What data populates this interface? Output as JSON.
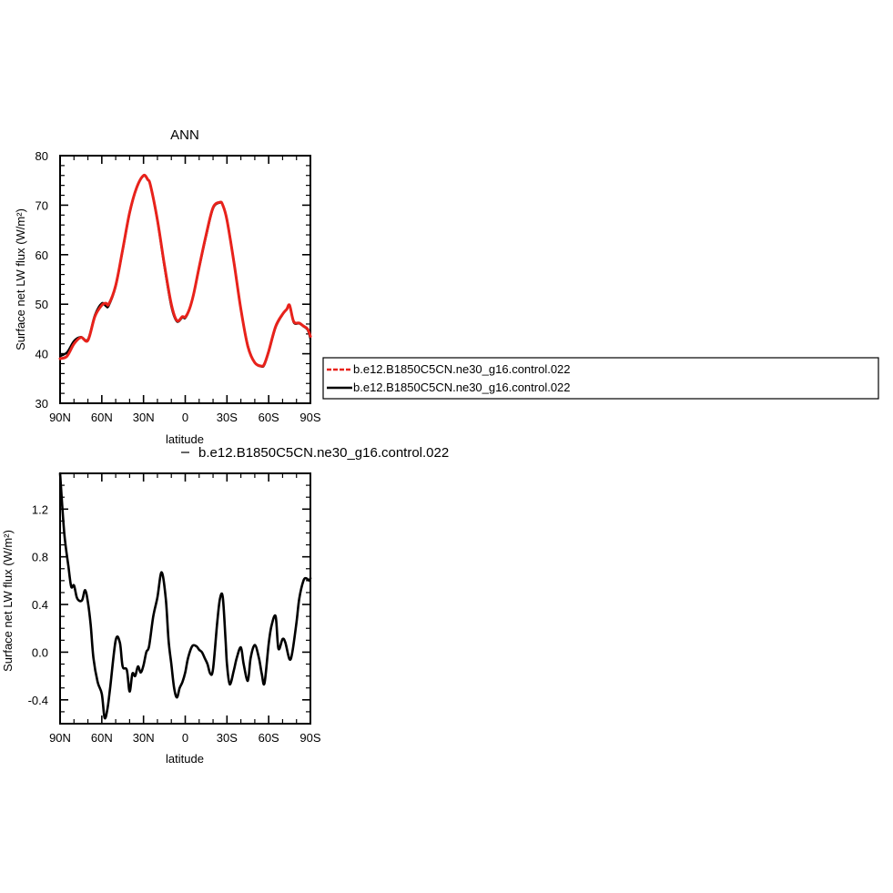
{
  "chart_data": [
    {
      "type": "line",
      "title": "ANN",
      "xlabel": "latitude",
      "ylabel": "Surface net LW flux (W/m²)",
      "x_ticks": [
        "90N",
        "60N",
        "30N",
        "0",
        "30S",
        "60S",
        "90S"
      ],
      "y_ticks": [
        "30",
        "40",
        "50",
        "60",
        "70",
        "80"
      ],
      "xlim": [
        90,
        -90
      ],
      "ylim": [
        30,
        80
      ],
      "grid": false,
      "legend_position": "right",
      "colors": {
        "series_1": "#e8221b",
        "series_2": "#000000"
      },
      "x": [
        90,
        85,
        80,
        75,
        70,
        65,
        60,
        57,
        55,
        50,
        45,
        40,
        35,
        30,
        27,
        25,
        20,
        15,
        10,
        6,
        2,
        0,
        -3,
        -6,
        -10,
        -15,
        -20,
        -25,
        -27,
        -30,
        -35,
        -40,
        -45,
        -50,
        -55,
        -57,
        -60,
        -65,
        -70,
        -73,
        -75,
        -78,
        -82,
        -85,
        -88,
        -90
      ],
      "series": [
        {
          "name": "b.e12.B1850C5CN.ne30_g16.control.022",
          "values": [
            39.0,
            39.5,
            42.0,
            43.3,
            42.7,
            47.5,
            49.8,
            50.2,
            50.0,
            53.8,
            61.0,
            68.5,
            73.5,
            76.0,
            75.2,
            74.0,
            67.0,
            58.0,
            50.0,
            46.7,
            47.5,
            47.4,
            49.0,
            52.0,
            57.5,
            64.0,
            69.5,
            70.6,
            70.0,
            67.0,
            58.5,
            49.0,
            41.5,
            38.2,
            37.5,
            38.0,
            40.5,
            45.5,
            48.0,
            49.0,
            49.8,
            46.5,
            46.2,
            45.6,
            45.0,
            43.5
          ]
        },
        {
          "name": "b.e12.B1850C5CN.ne30_g16.control.022",
          "values": [
            39.5,
            40.3,
            42.6,
            43.4,
            42.9,
            47.8,
            50.2,
            49.6,
            49.7,
            53.6,
            60.8,
            68.3,
            73.4,
            75.9,
            75.1,
            73.9,
            66.8,
            57.6,
            49.5,
            46.5,
            47.3,
            47.2,
            48.9,
            52.0,
            57.3,
            63.7,
            69.3,
            70.5,
            70.0,
            67.1,
            58.6,
            49.0,
            41.7,
            38.2,
            37.4,
            37.8,
            40.3,
            45.3,
            47.9,
            49.0,
            49.7,
            46.3,
            46.1,
            45.5,
            44.8,
            43.0
          ]
        }
      ]
    },
    {
      "type": "line",
      "title": "b.e12.B1850C5CN.ne30_g16.control.022",
      "xlabel": "latitude",
      "ylabel": "Surface net LW flux (W/m²)",
      "x_ticks": [
        "90N",
        "60N",
        "30N",
        "0",
        "30S",
        "60S",
        "90S"
      ],
      "y_ticks": [
        "-0.4",
        "0.0",
        "0.4",
        "0.8",
        "1.2"
      ],
      "xlim": [
        90,
        -90
      ],
      "ylim": [
        -0.6,
        1.5
      ],
      "grid": false,
      "colors": {
        "series_1": "#000000"
      },
      "x": [
        90,
        87,
        84,
        82,
        80,
        78,
        76,
        74,
        72,
        70,
        68,
        66,
        63,
        60,
        58,
        56,
        54,
        50,
        47,
        45,
        42,
        40,
        38,
        36,
        34,
        32,
        30,
        28,
        26,
        23,
        20,
        17,
        14,
        12,
        10,
        8,
        6,
        4,
        2,
        0,
        -2,
        -5,
        -8,
        -10,
        -12,
        -14,
        -16,
        -18,
        -20,
        -23,
        -25,
        -27,
        -29,
        -30,
        -32,
        -35,
        -37,
        -40,
        -42,
        -45,
        -47,
        -50,
        -53,
        -55,
        -57,
        -60,
        -62,
        -65,
        -67,
        -70,
        -72,
        -75,
        -77,
        -80,
        -82,
        -85,
        -87,
        -89,
        -90
      ],
      "series": [
        {
          "name": "b.e12.B1850C5CN.ne30_g16.control.022",
          "values": [
            1.5,
            1.0,
            0.72,
            0.55,
            0.56,
            0.46,
            0.43,
            0.44,
            0.52,
            0.42,
            0.23,
            -0.05,
            -0.25,
            -0.35,
            -0.55,
            -0.48,
            -0.3,
            0.1,
            0.08,
            -0.12,
            -0.15,
            -0.33,
            -0.18,
            -0.2,
            -0.12,
            -0.17,
            -0.11,
            0.0,
            0.05,
            0.3,
            0.46,
            0.67,
            0.45,
            0.1,
            -0.1,
            -0.3,
            -0.38,
            -0.3,
            -0.25,
            -0.17,
            -0.05,
            0.05,
            0.05,
            0.02,
            0.0,
            -0.05,
            -0.1,
            -0.18,
            -0.14,
            0.25,
            0.45,
            0.46,
            0.1,
            -0.1,
            -0.27,
            -0.15,
            -0.05,
            0.04,
            -0.1,
            -0.24,
            -0.05,
            0.06,
            -0.05,
            -0.18,
            -0.26,
            0.07,
            0.22,
            0.3,
            0.03,
            0.11,
            0.08,
            -0.06,
            0.0,
            0.25,
            0.45,
            0.6,
            0.62,
            0.6,
            0.62
          ]
        }
      ]
    }
  ]
}
